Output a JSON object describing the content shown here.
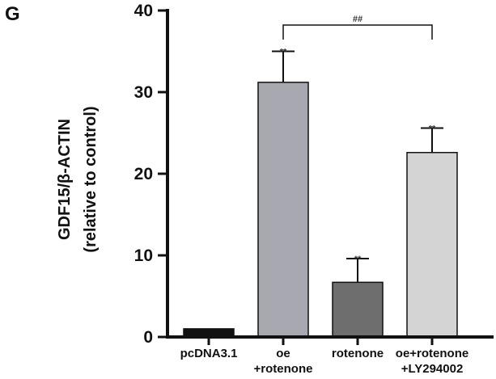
{
  "panel_letter": "G",
  "chart_data": {
    "type": "bar",
    "ylabel_lines": [
      "GDF15/β-ACTIN",
      "(relative to control)"
    ],
    "ylim": [
      0,
      40
    ],
    "yticks": [
      0,
      10,
      20,
      30,
      40
    ],
    "grid": false,
    "categories": [
      {
        "lines": [
          "pcDNA3.1"
        ]
      },
      {
        "lines": [
          "oe",
          "+rotenone"
        ]
      },
      {
        "lines": [
          "rotenone"
        ]
      },
      {
        "lines": [
          "oe+rotenone",
          "+LY294002"
        ]
      }
    ],
    "values": [
      1.0,
      31.2,
      6.7,
      22.6
    ],
    "errors": [
      0.05,
      3.8,
      2.9,
      3.0
    ],
    "colors": [
      "#111111",
      "#a8a8b0",
      "#6e6e6e",
      "#d4d4d4"
    ],
    "significance": [
      "",
      "**",
      "**",
      "**"
    ],
    "comparison": {
      "from": 1,
      "to": 3,
      "label": "##"
    }
  }
}
